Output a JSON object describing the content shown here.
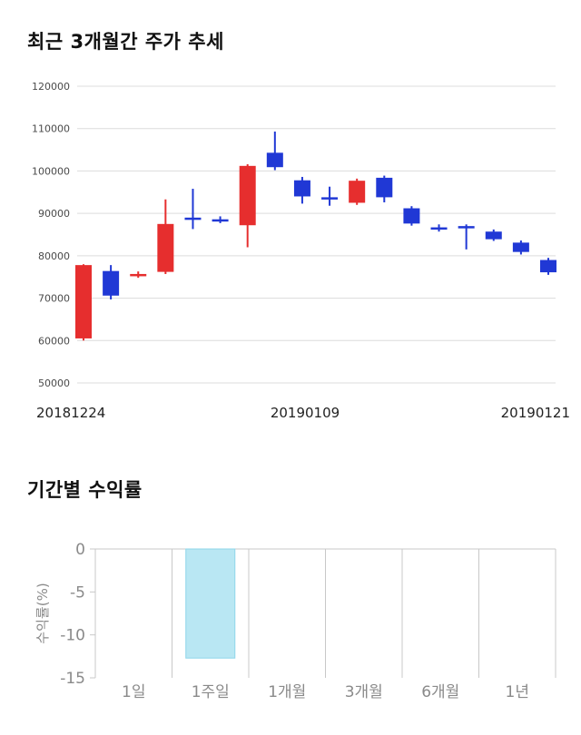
{
  "chart_data": [
    {
      "type": "candlestick",
      "title": "최근 3개월간 주가 추세",
      "ylim": [
        50000,
        120000
      ],
      "y_ticks": [
        120000,
        110000,
        100000,
        90000,
        80000,
        70000,
        60000,
        50000
      ],
      "x_axis_labels": [
        "20181224",
        "20190109",
        "20190121"
      ],
      "grid": "horizontal",
      "up_color": "#e62e2e",
      "down_color": "#2038d5",
      "candles": [
        {
          "date": "20181224",
          "open": 60500,
          "high": 78000,
          "low": 60000,
          "close": 77800
        },
        {
          "date": "20181226",
          "open": 76400,
          "high": 77800,
          "low": 69700,
          "close": 70600
        },
        {
          "date": "20181227",
          "open": 75200,
          "high": 76300,
          "low": 74800,
          "close": 75700
        },
        {
          "date": "20181228",
          "open": 76200,
          "high": 93300,
          "low": 75700,
          "close": 87500
        },
        {
          "date": "20190102",
          "open": 89000,
          "high": 95800,
          "low": 86300,
          "close": 88800
        },
        {
          "date": "20190103",
          "open": 88600,
          "high": 89300,
          "low": 87700,
          "close": 88300
        },
        {
          "date": "20190104",
          "open": 87200,
          "high": 101600,
          "low": 82000,
          "close": 101200
        },
        {
          "date": "20190107",
          "open": 104300,
          "high": 109300,
          "low": 100200,
          "close": 100900
        },
        {
          "date": "20190108",
          "open": 97800,
          "high": 98600,
          "low": 92300,
          "close": 94000
        },
        {
          "date": "20190109",
          "open": 93800,
          "high": 96300,
          "low": 91800,
          "close": 93700
        },
        {
          "date": "20190110",
          "open": 92500,
          "high": 98200,
          "low": 92000,
          "close": 97700
        },
        {
          "date": "20190111",
          "open": 98400,
          "high": 98900,
          "low": 92600,
          "close": 93800
        },
        {
          "date": "20190114",
          "open": 91200,
          "high": 91700,
          "low": 87100,
          "close": 87600
        },
        {
          "date": "20190115",
          "open": 86700,
          "high": 87400,
          "low": 85700,
          "close": 86400
        },
        {
          "date": "20190116",
          "open": 87000,
          "high": 87400,
          "low": 81500,
          "close": 86800
        },
        {
          "date": "20190117",
          "open": 85700,
          "high": 86200,
          "low": 83500,
          "close": 83900
        },
        {
          "date": "20190118",
          "open": 83100,
          "high": 83600,
          "low": 80300,
          "close": 80900
        },
        {
          "date": "20190121",
          "open": 79000,
          "high": 79500,
          "low": 75500,
          "close": 76100
        }
      ]
    },
    {
      "type": "bar",
      "title": "기간별 수익률",
      "ylabel": "수익률(%)",
      "ylim": [
        -15,
        0
      ],
      "y_ticks": [
        0,
        -5,
        -10,
        -15
      ],
      "categories": [
        "1일",
        "1주일",
        "1개월",
        "3개월",
        "6개월",
        "1년"
      ],
      "values": [
        null,
        -12.7,
        null,
        null,
        null,
        null
      ],
      "grid": "vertical-separators",
      "legend": "none",
      "bar_fill": "#b9e7f3",
      "bar_stroke": "#8ed6ea"
    }
  ],
  "colors": {
    "grid_light": "#dcdcdc",
    "grid_bar": "#c8c8c8",
    "axis_text_small": "#4a4a4a",
    "axis_text_dark": "#222222",
    "axis_text_gray": "#8a8a8a"
  }
}
